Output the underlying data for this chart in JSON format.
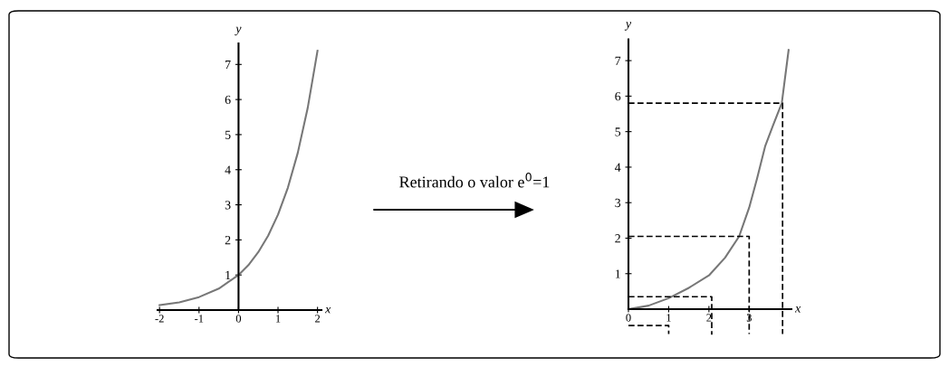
{
  "chart_data": [
    {
      "type": "line",
      "xlabel": "x",
      "ylabel": "y",
      "xlim": [
        -2.05,
        2.1
      ],
      "ylim": [
        0,
        7.6
      ],
      "xticks": [
        -2,
        -1,
        0,
        1,
        2
      ],
      "yticks": [
        1,
        2,
        3,
        4,
        5,
        6,
        7
      ],
      "grid": false,
      "legend": false,
      "marker": "none",
      "line_style": "solid",
      "annotations": [
        "Retirando o valor e$^{0}$=1"
      ],
      "series": [
        {
          "color": "#777777",
          "x": [
            -2,
            -1.5,
            -1,
            -0.5,
            0,
            0.25,
            0.5,
            0.75,
            1,
            1.25,
            1.5,
            1.75,
            2
          ],
          "values": [
            0.14,
            0.22,
            0.37,
            0.61,
            1.0,
            1.28,
            1.65,
            2.12,
            2.72,
            3.49,
            4.48,
            5.75,
            7.39
          ]
        }
      ]
    },
    {
      "type": "line",
      "xlabel": "x",
      "ylabel": "y",
      "xlim": [
        0,
        4.05
      ],
      "ylim": [
        -0.75,
        7.6
      ],
      "xticks": [
        0,
        1,
        2,
        3
      ],
      "yticks": [
        1,
        2,
        3,
        4,
        5,
        6,
        7
      ],
      "grid": false,
      "legend": false,
      "marker": "none",
      "line_style": "solid",
      "series": [
        {
          "color": "#777777",
          "x": [
            0,
            0.5,
            1,
            1.5,
            2,
            2.4,
            2.75,
            3,
            3.2,
            3.4,
            3.6,
            3.81,
            3.98
          ],
          "values": [
            0,
            0.1,
            0.31,
            0.6,
            0.95,
            1.45,
            2.05,
            2.86,
            3.7,
            4.6,
            5.2,
            5.8,
            7.3
          ]
        },
        {
          "color": "#000000",
          "line_style": "dashed",
          "x": [
            0,
            3.83,
            3.83
          ],
          "values": [
            5.8,
            5.8,
            -0.7
          ]
        },
        {
          "color": "#000000",
          "line_style": "dashed",
          "x": [
            0,
            3.0,
            3.0
          ],
          "values": [
            2.05,
            2.05,
            -0.7
          ]
        },
        {
          "color": "#000000",
          "line_style": "dashed",
          "x": [
            0,
            2.07,
            2.07
          ],
          "values": [
            0.35,
            0.35,
            -0.72
          ]
        },
        {
          "color": "#000000",
          "line_style": "dashed",
          "x": [
            0,
            1.0,
            1.0
          ],
          "values": [
            -0.46,
            -0.46,
            -0.7
          ]
        }
      ]
    }
  ]
}
